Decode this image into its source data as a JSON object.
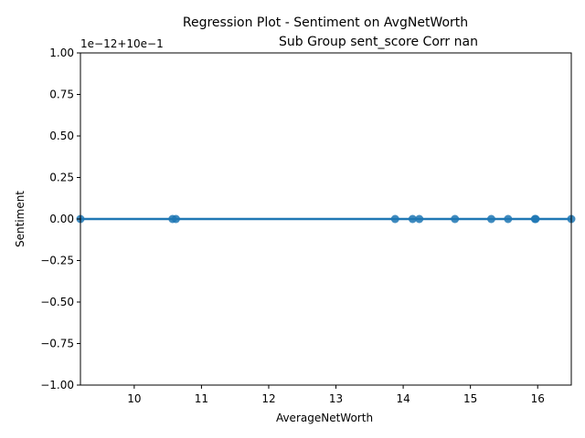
{
  "chart_data": {
    "type": "scatter",
    "title_line1": "Regression Plot - Sentiment on AvgNetWorth",
    "title_line2": "Sub Group sent_score Corr nan",
    "xlabel": "AverageNetWorth",
    "ylabel": "Sentiment",
    "y_offset_text": "1e−12+10e−1",
    "xlim": [
      9.2,
      16.5
    ],
    "ylim": [
      -1.0,
      1.0
    ],
    "x_ticks": [
      10,
      11,
      12,
      13,
      14,
      15,
      16
    ],
    "x_tick_labels": [
      "10",
      "11",
      "12",
      "13",
      "14",
      "15",
      "16"
    ],
    "y_ticks": [
      -1.0,
      -0.75,
      -0.5,
      -0.25,
      0.0,
      0.25,
      0.5,
      0.75,
      1.0
    ],
    "y_tick_labels": [
      "−1.00",
      "−0.75",
      "−0.50",
      "−0.25",
      "0.00",
      "0.25",
      "0.50",
      "0.75",
      "1.00"
    ],
    "points": [
      {
        "x": 9.2,
        "y": 0.0
      },
      {
        "x": 10.57,
        "y": 0.0
      },
      {
        "x": 10.62,
        "y": 0.0
      },
      {
        "x": 13.88,
        "y": 0.0
      },
      {
        "x": 14.14,
        "y": 0.0
      },
      {
        "x": 14.24,
        "y": 0.0
      },
      {
        "x": 14.77,
        "y": 0.0
      },
      {
        "x": 15.31,
        "y": 0.0
      },
      {
        "x": 15.56,
        "y": 0.0
      },
      {
        "x": 15.96,
        "y": 0.0
      },
      {
        "x": 15.97,
        "y": 0.0
      },
      {
        "x": 16.5,
        "y": 0.0
      }
    ],
    "regression_line": {
      "x": [
        9.2,
        16.5
      ],
      "y": [
        0.0,
        0.0
      ]
    },
    "grid": false,
    "colors": {
      "series": "#1f77b4",
      "axes": "#000000"
    }
  }
}
